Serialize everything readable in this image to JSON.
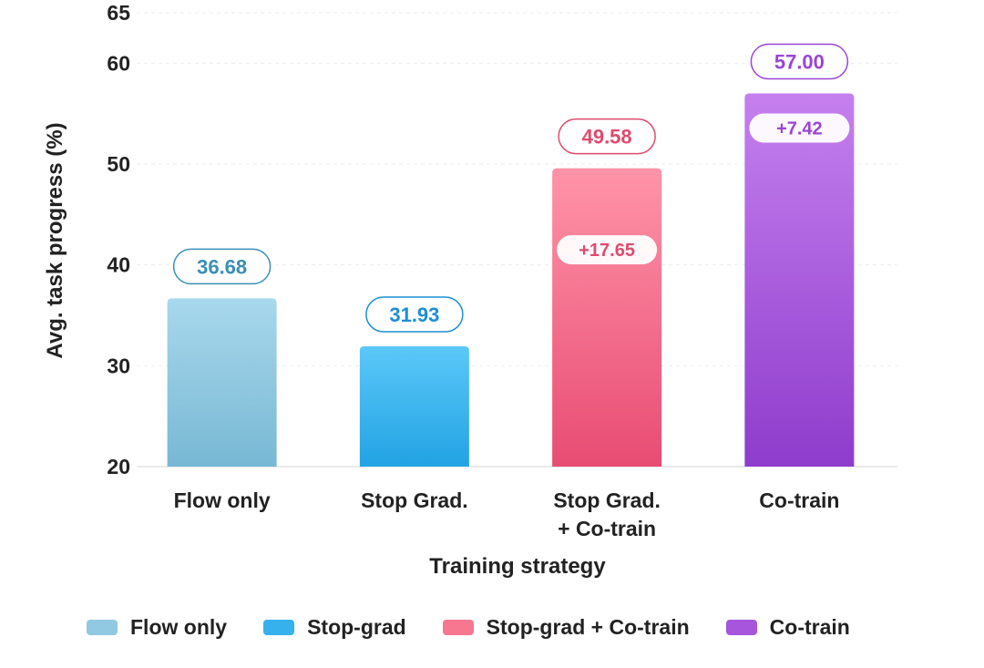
{
  "chart_data": {
    "type": "bar",
    "categories": [
      "Flow only",
      "Stop Grad.",
      "Stop Grad.\n+ Co-train",
      "Co-train"
    ],
    "values": [
      36.68,
      31.93,
      49.58,
      57.0
    ],
    "value_labels": [
      "36.68",
      "31.93",
      "49.58",
      "57.00"
    ],
    "delta_labels": [
      "",
      "",
      "+17.65",
      "+7.42"
    ],
    "xlabel": "Training strategy",
    "ylabel": "Avg. task progress (%)",
    "ylim": [
      20,
      65
    ],
    "yticks": [
      20,
      30,
      40,
      50,
      60,
      65
    ],
    "grid": true,
    "legend_position": "bottom",
    "colors": {
      "bar_top": [
        "#a8d8ec",
        "#5bc8f8",
        "#ff94a8",
        "#c580ee"
      ],
      "bar_bottom": [
        "#78b8d4",
        "#22a3e3",
        "#e84c72",
        "#8e3ccc"
      ],
      "label_text": [
        "#3a8fb5",
        "#1c8fd6",
        "#e04a6e",
        "#9a44d6"
      ]
    }
  },
  "legend": {
    "items": [
      {
        "label": "Flow only",
        "color": "#92c9e2"
      },
      {
        "label": "Stop-grad",
        "color": "#36b1ee"
      },
      {
        "label": "Stop-grad + Co-train",
        "color": "#f77690"
      },
      {
        "label": "Co-train",
        "color": "#a755dc"
      }
    ]
  }
}
